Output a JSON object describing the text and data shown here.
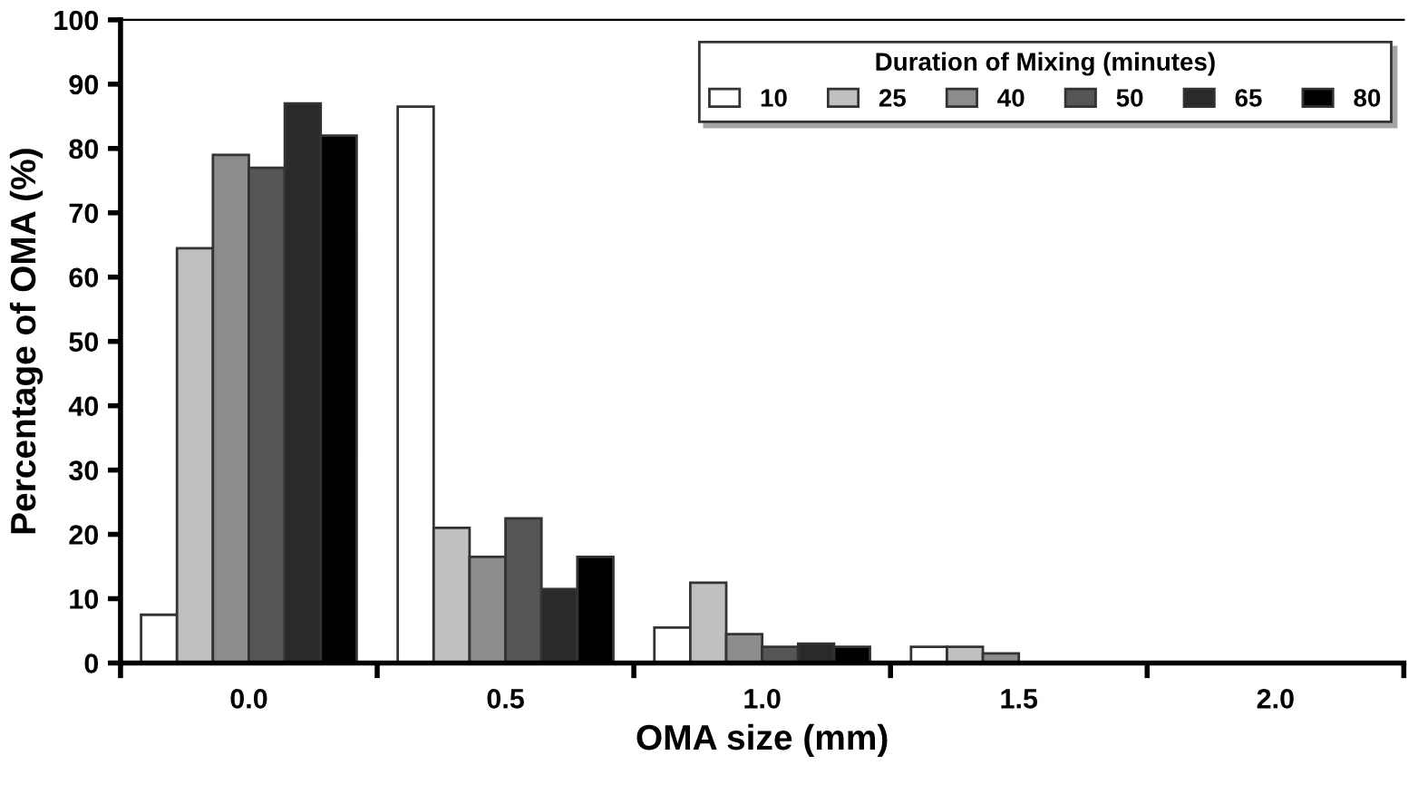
{
  "chart_data": {
    "type": "bar",
    "xlabel": "OMA size (mm)",
    "ylabel": "Percentage of OMA (%)",
    "legend_title": "Duration of Mixing (minutes)",
    "categories": [
      "0.0",
      "0.5",
      "1.0",
      "1.5",
      "2.0"
    ],
    "series": [
      {
        "name": "10",
        "color": "#ffffff",
        "values": [
          7.5,
          86.5,
          5.5,
          2.5,
          null
        ]
      },
      {
        "name": "25",
        "color": "#c0c0c0",
        "values": [
          64.5,
          21,
          12.5,
          2.5,
          null
        ]
      },
      {
        "name": "40",
        "color": "#8c8c8c",
        "values": [
          79,
          16.5,
          4.5,
          1.5,
          null
        ]
      },
      {
        "name": "50",
        "color": "#555555",
        "values": [
          77,
          22.5,
          2.5,
          null,
          null
        ]
      },
      {
        "name": "65",
        "color": "#2a2a2a",
        "values": [
          87,
          11.5,
          3,
          null,
          null
        ]
      },
      {
        "name": "80",
        "color": "#000000",
        "values": [
          82,
          16.5,
          2.5,
          null,
          null
        ]
      }
    ],
    "ylim": [
      0,
      100
    ],
    "yticks": [
      0,
      10,
      20,
      30,
      40,
      50,
      60,
      70,
      80,
      90,
      100
    ],
    "grid": false,
    "legend": "top right"
  }
}
